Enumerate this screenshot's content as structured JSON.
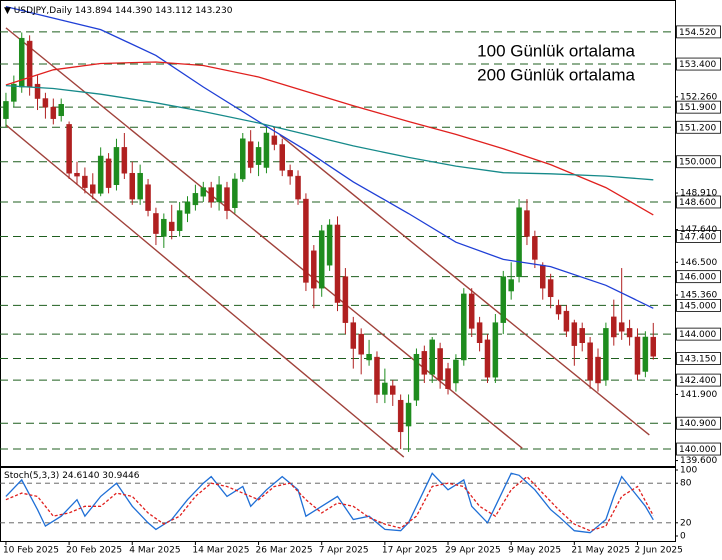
{
  "chart_data": [
    {
      "type": "candlestick",
      "title": "USDJPY,Daily",
      "ohlc_labels": [
        "143.894",
        "144.390",
        "143.112",
        "143.230"
      ],
      "xlim": [
        -0.5,
        84.5
      ],
      "ylim": [
        139.41,
        155.56
      ],
      "xticks": [
        {
          "value": 0,
          "label": "10 Feb 2025"
        },
        {
          "value": 8,
          "label": "20 Feb 2025"
        },
        {
          "value": 16,
          "label": "4 Mar 2025"
        },
        {
          "value": 24,
          "label": "14 Mar 2025"
        },
        {
          "value": 32,
          "label": "26 Mar 2025"
        },
        {
          "value": 40,
          "label": "7 Apr 2025"
        },
        {
          "value": 48,
          "label": "17 Apr 2025"
        },
        {
          "value": 56,
          "label": "29 Apr 2025"
        },
        {
          "value": 64,
          "label": "9 May 2025"
        },
        {
          "value": 72,
          "label": "21 May 2025"
        },
        {
          "value": 80,
          "label": "2 Jun 2025"
        }
      ],
      "yticks": [
        {
          "value": 152.26,
          "label": "152.260"
        },
        {
          "value": 148.91,
          "label": "148.910"
        },
        {
          "value": 147.64,
          "label": "147.640"
        },
        {
          "value": 146.5,
          "label": "146.500"
        },
        {
          "value": 145.36,
          "label": "145.360"
        },
        {
          "value": 141.9,
          "label": "141.900"
        },
        {
          "value": 139.6,
          "label": "139.600"
        }
      ],
      "levels": [
        {
          "value": 154.52,
          "label": "154.520"
        },
        {
          "value": 153.4,
          "label": "153.400"
        },
        {
          "value": 151.9,
          "label": "151.900"
        },
        {
          "value": 151.2,
          "label": "151.200"
        },
        {
          "value": 150,
          "label": "150.000"
        },
        {
          "value": 148.6,
          "label": "148.600"
        },
        {
          "value": 147.4,
          "label": "147.400"
        },
        {
          "value": 146,
          "label": "146.000"
        },
        {
          "value": 145,
          "label": "145.000"
        },
        {
          "value": 144,
          "label": "144.000"
        },
        {
          "value": 143.15,
          "label": "143.150"
        },
        {
          "value": 142.4,
          "label": "142.400"
        },
        {
          "value": 140.9,
          "label": "140.900"
        },
        {
          "value": 140,
          "label": "140.000"
        }
      ],
      "level_color": "#1f5f1f",
      "candles": {
        "up_color": "#1e8c1e",
        "down_color": "#b02020",
        "open": [
          151.5,
          152.1,
          152.6,
          154.2,
          152.7,
          152.2,
          151.9,
          151.6,
          151.3,
          149.6,
          149.5,
          149.2,
          148.9,
          150.1,
          149.2,
          150.5,
          149.6,
          148.7,
          149.2,
          148.2,
          147.4,
          147.9,
          147.6,
          148.2,
          148.5,
          148.8,
          149.1,
          148.6,
          149.1,
          148.4,
          149.4,
          150.7,
          149.9,
          149.8,
          150.9,
          150.6,
          149.7,
          149.5,
          148.7,
          146.9,
          145.6,
          146.4,
          147.8,
          146.0,
          144.4,
          144.0,
          143.1,
          143.2,
          141.9,
          142.2,
          141.7,
          140.8,
          141.7,
          143.4,
          142.6,
          143.5,
          142.8,
          142.3,
          143.1,
          145.4,
          144.4,
          143.8,
          142.5,
          144.4,
          145.5,
          146.0,
          148.3,
          147.4,
          146.4,
          145.9,
          145.0,
          144.8,
          144.4,
          144.2,
          143.7,
          143.2,
          142.4,
          144.6,
          144.4,
          144.2,
          143.9,
          142.7,
          143.894
        ],
        "high": [
          152.4,
          153.0,
          154.5,
          154.4,
          153.0,
          152.4,
          152.2,
          152.2,
          151.4,
          150.0,
          149.8,
          149.6,
          150.5,
          150.3,
          150.8,
          151.0,
          150.0,
          149.9,
          149.4,
          148.4,
          148.2,
          148.5,
          148.6,
          148.8,
          149.2,
          149.3,
          149.3,
          149.5,
          149.3,
          149.6,
          151.0,
          151.1,
          150.7,
          151.2,
          151.2,
          150.8,
          149.9,
          149.7,
          148.9,
          147.1,
          147.8,
          148.0,
          148.1,
          146.3,
          144.6,
          144.2,
          143.8,
          143.4,
          142.8,
          142.4,
          141.9,
          141.9,
          143.5,
          143.6,
          143.9,
          143.7,
          143.0,
          143.3,
          145.6,
          145.6,
          144.6,
          144.0,
          144.7,
          146.2,
          146.5,
          148.7,
          148.7,
          147.6,
          146.5,
          146.1,
          145.2,
          145.0,
          144.5,
          144.4,
          143.9,
          143.5,
          144.4,
          145.2,
          146.3,
          144.5,
          144.2,
          144.1,
          144.39
        ],
        "low": [
          151.2,
          151.9,
          152.4,
          152.3,
          151.8,
          151.5,
          151.3,
          151.4,
          149.4,
          149.2,
          148.9,
          148.7,
          148.8,
          148.9,
          149.0,
          149.4,
          148.5,
          148.5,
          148.1,
          147.1,
          147.0,
          147.3,
          147.4,
          147.9,
          148.3,
          148.6,
          148.4,
          148.3,
          148.0,
          148.2,
          149.3,
          149.6,
          149.5,
          149.6,
          150.4,
          149.5,
          149.2,
          148.5,
          145.5,
          144.9,
          145.3,
          146.2,
          144.8,
          144.0,
          142.8,
          142.6,
          142.9,
          141.6,
          141.6,
          141.5,
          140.0,
          139.9,
          141.5,
          142.3,
          142.3,
          142.1,
          141.9,
          142.0,
          142.9,
          143.9,
          143.4,
          142.3,
          142.3,
          144.0,
          145.2,
          145.8,
          147.1,
          146.3,
          145.2,
          144.9,
          144.5,
          143.9,
          142.9,
          143.4,
          142.1,
          142.0,
          142.2,
          143.6,
          143.8,
          143.6,
          142.4,
          142.5,
          143.112
        ],
        "close": [
          152.1,
          152.7,
          154.3,
          152.6,
          152.2,
          151.9,
          151.5,
          152.0,
          149.6,
          149.5,
          149.1,
          148.9,
          150.2,
          149.1,
          150.5,
          149.6,
          148.7,
          149.6,
          148.3,
          147.5,
          148.0,
          147.6,
          148.3,
          148.6,
          148.9,
          149.1,
          148.6,
          149.2,
          148.3,
          149.4,
          150.8,
          149.8,
          150.5,
          151.0,
          150.6,
          149.7,
          149.5,
          148.7,
          145.8,
          145.6,
          147.6,
          147.8,
          145.1,
          144.4,
          143.5,
          143.3,
          143.3,
          141.9,
          142.3,
          141.9,
          140.6,
          141.6,
          143.3,
          142.6,
          143.8,
          142.4,
          142.1,
          143.1,
          145.4,
          144.2,
          143.7,
          142.5,
          144.4,
          146.0,
          145.9,
          148.4,
          147.4,
          146.6,
          145.6,
          145.3,
          144.7,
          144.1,
          143.6,
          143.7,
          142.4,
          142.3,
          144.2,
          143.9,
          144.1,
          143.9,
          142.6,
          143.9,
          143.23
        ]
      },
      "series": [
        {
          "color": "#1f3fd6",
          "x": [
            0,
            6,
            12,
            19,
            25,
            32,
            38,
            44,
            51,
            57,
            63,
            69,
            76,
            82
          ],
          "values": [
            155.4,
            155.0,
            154.6,
            153.7,
            152.6,
            151.4,
            150.4,
            149.3,
            148.2,
            147.2,
            146.6,
            146.35,
            145.7,
            144.9
          ]
        },
        {
          "name": "100 Günlük ortalama",
          "color": "#e0201e",
          "x": [
            0,
            6,
            12,
            19,
            25,
            32,
            38,
            44,
            51,
            57,
            63,
            69,
            76,
            82
          ],
          "values": [
            152.67,
            153.2,
            153.42,
            153.47,
            153.35,
            152.95,
            152.45,
            151.95,
            151.4,
            150.95,
            150.45,
            149.9,
            149.1,
            148.15
          ]
        },
        {
          "name": "200 Günlük ortalama",
          "color": "#168a8a",
          "x": [
            0,
            6,
            12,
            19,
            25,
            32,
            38,
            44,
            51,
            57,
            63,
            69,
            76,
            82
          ],
          "values": [
            152.65,
            152.55,
            152.35,
            152.05,
            151.75,
            151.35,
            150.95,
            150.55,
            150.15,
            149.85,
            149.62,
            149.58,
            149.5,
            149.37
          ]
        }
      ],
      "legend": "top-right",
      "trendline_color": "#a0413a",
      "trendlines": [
        {
          "x": [
            0,
            65.4
          ],
          "values": [
            154.66,
            140.03
          ]
        },
        {
          "x": [
            0,
            50.4
          ],
          "values": [
            151.28,
            139.72
          ]
        },
        {
          "x": [
            34.7,
            81.5
          ],
          "values": [
            150.93,
            140.49
          ]
        }
      ]
    },
    {
      "type": "line",
      "title": "Stoch(5,3,3)",
      "value_labels": [
        "24.6140",
        "30.9446"
      ],
      "ylim": [
        0,
        100
      ],
      "yticks": [
        0,
        20,
        80,
        100
      ],
      "series": [
        {
          "color": "#1f6fd6",
          "x": [
            0,
            2,
            4,
            5,
            7,
            9,
            10,
            12,
            14,
            16,
            18,
            19,
            21,
            23,
            25,
            26,
            28,
            30,
            31,
            33,
            35,
            37,
            38,
            40,
            42,
            44,
            46,
            48,
            50,
            51,
            53,
            54,
            56,
            58,
            59,
            61,
            62,
            64,
            65,
            67,
            69,
            70,
            72,
            74,
            76,
            77,
            78,
            80,
            81,
            82
          ],
          "values": [
            60,
            85,
            40,
            15,
            30,
            55,
            30,
            60,
            80,
            45,
            20,
            10,
            25,
            55,
            80,
            90,
            60,
            75,
            45,
            70,
            90,
            70,
            30,
            45,
            60,
            25,
            30,
            10,
            8,
            20,
            70,
            95,
            70,
            85,
            45,
            20,
            45,
            95,
            92,
            70,
            40,
            30,
            8,
            5,
            25,
            60,
            90,
            60,
            45,
            24.614
          ]
        },
        {
          "color": "#e0201e",
          "dashed": true,
          "x": [
            0,
            2,
            4,
            6,
            8,
            10,
            12,
            14,
            16,
            18,
            20,
            22,
            24,
            26,
            28,
            30,
            32,
            34,
            36,
            38,
            40,
            42,
            44,
            46,
            48,
            50,
            52,
            54,
            56,
            58,
            60,
            62,
            64,
            66,
            68,
            70,
            72,
            74,
            76,
            78,
            80,
            82
          ],
          "values": [
            55,
            65,
            60,
            30,
            35,
            45,
            45,
            65,
            60,
            35,
            18,
            30,
            60,
            80,
            75,
            65,
            55,
            75,
            80,
            55,
            35,
            50,
            45,
            28,
            18,
            12,
            30,
            75,
            80,
            75,
            45,
            30,
            70,
            90,
            65,
            40,
            18,
            8,
            15,
            60,
            75,
            30.9446
          ]
        }
      ]
    }
  ]
}
